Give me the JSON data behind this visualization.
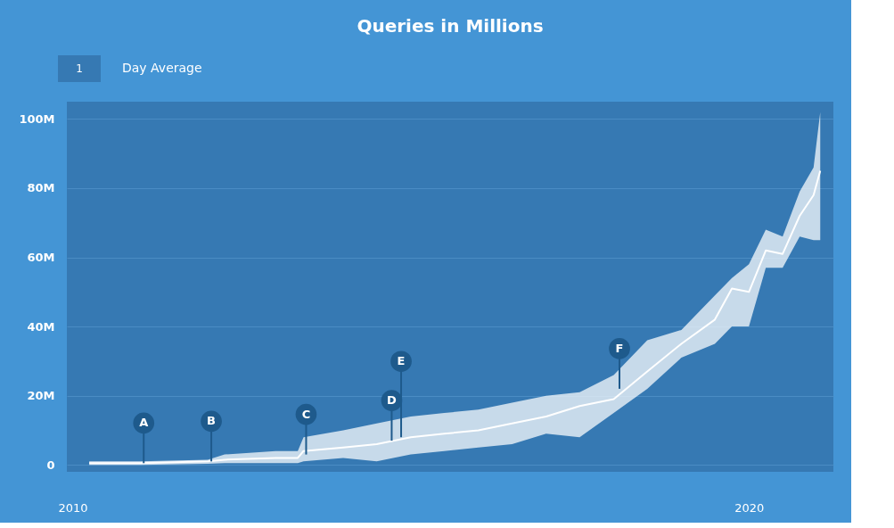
{
  "chart_data": {
    "type": "line",
    "title": "Queries in Millions",
    "x": [
      "2010-04",
      "2011-01",
      "2012-01",
      "2012-04",
      "2013-01",
      "2013-05",
      "2013-06",
      "2014-01",
      "2014-07",
      "2015-01",
      "2015-07",
      "2016-01",
      "2016-07",
      "2017-01",
      "2017-07",
      "2018-01",
      "2018-07",
      "2019-01",
      "2019-07",
      "2019-10",
      "2020-01",
      "2020-04",
      "2020-07",
      "2020-10",
      "2020-12-15",
      "2021-01-20"
    ],
    "series": [
      {
        "color": "#ffffff",
        "values": [
          0.5,
          0.5,
          1,
          1.5,
          2,
          2,
          4,
          5,
          6,
          8,
          9,
          10,
          12,
          14,
          17,
          19,
          27,
          35,
          42,
          51,
          50,
          62,
          61,
          72,
          78,
          85
        ],
        "lower": [
          0,
          0,
          0.3,
          0.5,
          0.5,
          0.5,
          1,
          2,
          1,
          3,
          4,
          5,
          6,
          9,
          8,
          15,
          22,
          31,
          35,
          40,
          40,
          57,
          57,
          66,
          65,
          65
        ],
        "upper": [
          1,
          1,
          1.5,
          3,
          4,
          4,
          8,
          10,
          12,
          14,
          15,
          16,
          18,
          20,
          21,
          26,
          36,
          39,
          49,
          54,
          58,
          68,
          66,
          79,
          86,
          102
        ]
      }
    ],
    "xlim": [
      "2009-12",
      "2021-04"
    ],
    "xticks": [
      "2010",
      "2020"
    ],
    "ylim": [
      -2,
      105
    ],
    "yticks": [
      0,
      {
        "value": 20,
        "label": "20M"
      },
      {
        "value": 40,
        "label": "40M"
      },
      {
        "value": 60,
        "label": "60M"
      },
      {
        "value": 80,
        "label": "80M"
      },
      {
        "value": 100,
        "label": "100M"
      }
    ],
    "grid": "y",
    "annotations": [
      {
        "text": "A",
        "x": "2011-01-20",
        "y": 0.5
      },
      {
        "text": "B",
        "x": "2012-01-20",
        "y": 1
      },
      {
        "text": "C",
        "x": "2013-06-15",
        "y": 3
      },
      {
        "text": "D",
        "x": "2014-09-20",
        "y": 7
      },
      {
        "text": "E",
        "x": "2014-11-10",
        "y": 8
      },
      {
        "text": "F",
        "x": "2018-02-01",
        "y": 22
      },
      "1",
      "Day Average"
    ]
  }
}
